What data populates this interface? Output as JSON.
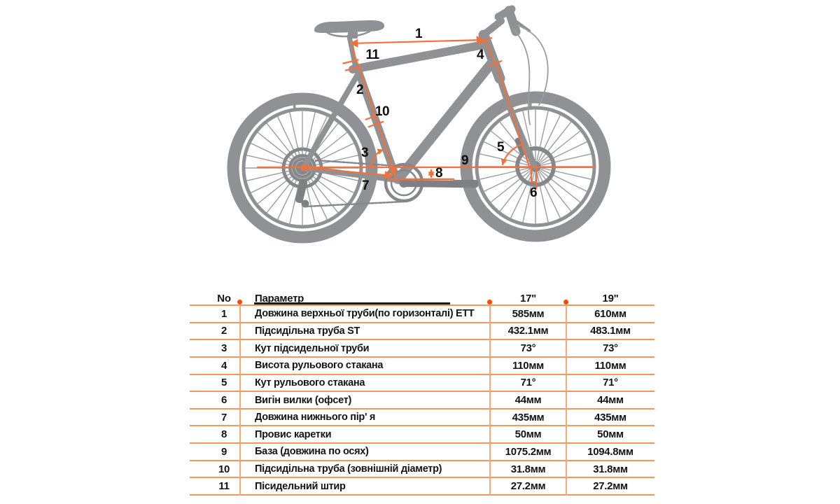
{
  "diagram": {
    "name": "bike-geometry-diagram",
    "labels": [
      "1",
      "2",
      "3",
      "4",
      "5",
      "6",
      "7",
      "8",
      "9",
      "10",
      "11"
    ],
    "colors": {
      "annotation_orange": "#f2713a",
      "bike_gray": "#8f9194",
      "bike_gray_dark": "#7e8083",
      "label_black": "#0e0e0e"
    }
  },
  "table": {
    "colors": {
      "line_orange": "#f5975a",
      "divider_orange": "#f8a876",
      "dot_orange": "#ff4a00",
      "header_underline": "#1b1b1b"
    },
    "headers": {
      "no": "No",
      "param": "Параметр",
      "s17": "17\"",
      "s19": "19\""
    },
    "rows": [
      {
        "no": "1",
        "param": "Довжина верхньої труби(по горизонталі) ЕТТ",
        "v17": "585мм",
        "v19": "610мм"
      },
      {
        "no": "2",
        "param": "Підсидільна труба ST",
        "v17": "432.1мм",
        "v19": "483.1мм"
      },
      {
        "no": "3",
        "param": "Кут підсидельної труби",
        "v17": "73°",
        "v19": "73°"
      },
      {
        "no": "4",
        "param": "Висота рульового стакана",
        "v17": "110мм",
        "v19": "110мм"
      },
      {
        "no": "5",
        "param": "Кут рульового стакана",
        "v17": "71°",
        "v19": "71°"
      },
      {
        "no": "6",
        "param": "Вигін вилки (офсет)",
        "v17": "44мм",
        "v19": "44мм"
      },
      {
        "no": "7",
        "param": "Довжина нижнього пір' я",
        "v17": "435мм",
        "v19": "435мм"
      },
      {
        "no": "8",
        "param": "Провис каретки",
        "v17": "50мм",
        "v19": "50мм"
      },
      {
        "no": "9",
        "param": "База (довжина по осях)",
        "v17": "1075.2мм",
        "v19": "1094.8мм"
      },
      {
        "no": "10",
        "param": "Підсидільна труба (зовнішній діаметр)",
        "v17": "31.8мм",
        "v19": "31.8мм"
      },
      {
        "no": "11",
        "param": "Пісидельний штир",
        "v17": "27.2мм",
        "v19": "27.2мм"
      }
    ]
  }
}
